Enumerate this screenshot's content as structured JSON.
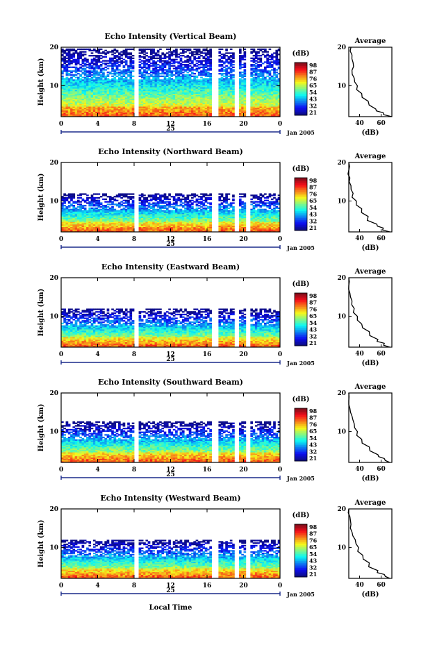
{
  "figure": {
    "xlabel": "Local Time",
    "date_label": "Jan 2005",
    "day_label": "25",
    "colorbar_unit": "(dB)",
    "colorbar_ticks": [
      "98",
      "87",
      "76",
      "65",
      "54",
      "43",
      "32",
      "21"
    ],
    "average_title": "Average",
    "average_xlabel": "(dB)",
    "average_xticks": [
      "40",
      "60"
    ],
    "ylabel": "Height (km)",
    "yticks": [
      "20",
      "10"
    ],
    "xticks": [
      "0",
      "4",
      "8",
      "12",
      "16",
      "20",
      "0"
    ],
    "colors": {
      "scale_low": "#2a2aa8",
      "scale_mid": "#40c0e0",
      "scale_high": "#d01a10",
      "line": "#000000"
    }
  },
  "chart_data": [
    {
      "type": "heatmap",
      "title": "Echo Intensity (Vertical Beam)",
      "xlabel": "Local Time",
      "ylabel": "Height (km)",
      "xlim": [
        0,
        24
      ],
      "ylim": [
        2,
        20
      ],
      "clim": [
        21,
        98
      ],
      "data_gaps_hours": [
        [
          7.9,
          8.6
        ],
        [
          16.5,
          17.2
        ],
        [
          19.1,
          19.6
        ],
        [
          20.3,
          20.8
        ]
      ],
      "echo_top_km": 19.5,
      "average_profile": {
        "heights_km": [
          20,
          18,
          16,
          14,
          12,
          10,
          8,
          6,
          4,
          3,
          2
        ],
        "db": [
          32,
          33,
          34,
          33,
          35,
          38,
          42,
          48,
          55,
          62,
          70
        ]
      }
    },
    {
      "type": "heatmap",
      "title": "Echo Intensity (Northward Beam)",
      "xlabel": "Local Time",
      "ylabel": "Height (km)",
      "xlim": [
        0,
        24
      ],
      "ylim": [
        2,
        20
      ],
      "clim": [
        21,
        98
      ],
      "data_gaps_hours": [
        [
          7.9,
          8.6
        ],
        [
          16.5,
          17.2
        ],
        [
          19.1,
          19.6
        ],
        [
          20.3,
          20.8
        ]
      ],
      "echo_top_km": 12,
      "average_profile": {
        "heights_km": [
          20,
          18,
          16,
          14,
          12,
          10,
          8,
          6,
          4,
          3,
          2
        ],
        "db": [
          30,
          30,
          31,
          32,
          34,
          37,
          42,
          48,
          56,
          62,
          68
        ]
      }
    },
    {
      "type": "heatmap",
      "title": "Echo Intensity (Eastward Beam)",
      "xlabel": "Local Time",
      "ylabel": "Height (km)",
      "xlim": [
        0,
        24
      ],
      "ylim": [
        2,
        20
      ],
      "clim": [
        21,
        98
      ],
      "data_gaps_hours": [
        [
          7.9,
          8.6
        ],
        [
          16.5,
          17.2
        ],
        [
          19.1,
          19.6
        ],
        [
          20.3,
          20.8
        ]
      ],
      "echo_top_km": 12,
      "average_profile": {
        "heights_km": [
          20,
          18,
          16,
          14,
          12,
          10,
          8,
          6,
          4,
          3,
          2
        ],
        "db": [
          30,
          30,
          31,
          33,
          35,
          38,
          42,
          49,
          57,
          63,
          68
        ]
      }
    },
    {
      "type": "heatmap",
      "title": "Echo Intensity (Southward Beam)",
      "xlabel": "Local Time",
      "ylabel": "Height (km)",
      "xlim": [
        0,
        24
      ],
      "ylim": [
        2,
        20
      ],
      "clim": [
        21,
        98
      ],
      "data_gaps_hours": [
        [
          7.9,
          8.6
        ],
        [
          16.5,
          17.2
        ],
        [
          19.1,
          19.6
        ],
        [
          20.3,
          20.8
        ]
      ],
      "echo_top_km": 12.5,
      "average_profile": {
        "heights_km": [
          20,
          18,
          16,
          14,
          12,
          10,
          8,
          6,
          4,
          3,
          2
        ],
        "db": [
          30,
          30,
          31,
          33,
          35,
          38,
          42,
          49,
          57,
          63,
          68
        ]
      }
    },
    {
      "type": "heatmap",
      "title": "Echo Intensity (Westward Beam)",
      "xlabel": "Local Time",
      "ylabel": "Height (km)",
      "xlim": [
        0,
        24
      ],
      "ylim": [
        2,
        20
      ],
      "clim": [
        21,
        98
      ],
      "data_gaps_hours": [
        [
          7.9,
          8.6
        ],
        [
          16.5,
          17.2
        ],
        [
          19.1,
          19.6
        ],
        [
          20.3,
          20.8
        ]
      ],
      "echo_top_km": 12,
      "average_profile": {
        "heights_km": [
          20,
          18,
          16,
          14,
          12,
          10,
          8,
          6,
          4,
          3,
          2
        ],
        "db": [
          30,
          31,
          32,
          33,
          36,
          39,
          43,
          49,
          57,
          63,
          68
        ]
      }
    }
  ]
}
